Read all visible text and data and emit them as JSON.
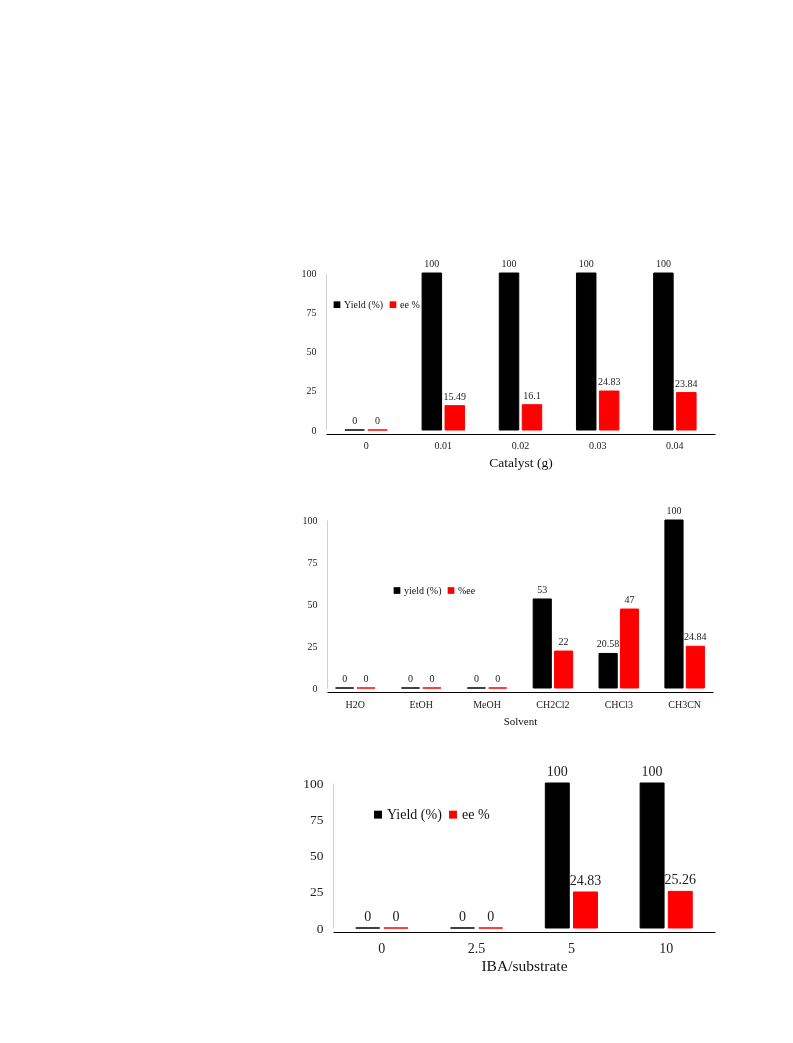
{
  "chart_data": [
    {
      "type": "bar",
      "xlabel": "Catalyst (g)",
      "categories": [
        "0",
        "0.01",
        "0.02",
        "0.03",
        "0.04"
      ],
      "series": [
        {
          "name": "Yield (%)",
          "color": "#000000",
          "values": [
            0,
            100,
            100,
            100,
            100
          ]
        },
        {
          "name": "ee %",
          "color": "#ff0000",
          "values": [
            0,
            15.49,
            16.1,
            24.83,
            23.84
          ]
        }
      ],
      "ylim": [
        0,
        100
      ],
      "yticks": [
        0,
        25,
        50,
        75,
        100
      ],
      "data_labels": true,
      "legend": "top left"
    },
    {
      "type": "bar",
      "xlabel": "Solvent",
      "categories": [
        "H2O",
        "EtOH",
        "MeOH",
        "CH2Cl2",
        "CHCl3",
        "CH3CN"
      ],
      "series": [
        {
          "name": "yield (%)",
          "color": "#000000",
          "values": [
            0,
            0,
            0,
            53,
            20.58,
            100
          ]
        },
        {
          "name": "%ee",
          "color": "#ff0000",
          "values": [
            0,
            0,
            0,
            22,
            47,
            24.84
          ]
        }
      ],
      "ylim": [
        0,
        100
      ],
      "yticks": [
        0,
        25,
        50,
        75,
        100
      ],
      "data_labels": true,
      "legend": "left"
    },
    {
      "type": "bar",
      "xlabel": "IBA/substrate",
      "categories": [
        "0",
        "2.5",
        "5",
        "10"
      ],
      "series": [
        {
          "name": "Yield (%)",
          "color": "#000000",
          "values": [
            0,
            0,
            100,
            100
          ]
        },
        {
          "name": "ee %",
          "color": "#ff0000",
          "values": [
            0,
            0,
            24.83,
            25.26
          ]
        }
      ],
      "ylim": [
        0,
        100
      ],
      "yticks": [
        0,
        25,
        50,
        75,
        100
      ],
      "data_labels": true,
      "legend": "top left"
    }
  ]
}
